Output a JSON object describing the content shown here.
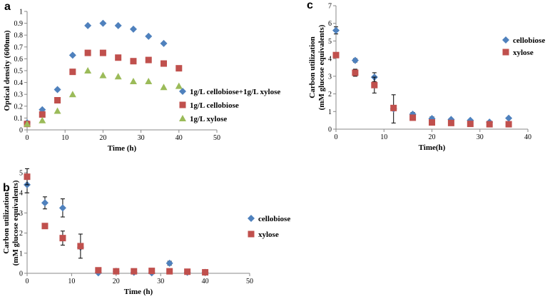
{
  "colors": {
    "blue": "#4f81bd",
    "red": "#c0504d",
    "green": "#9bbb59",
    "axis": "#888888",
    "errorbar": "#000000"
  },
  "chart_data": [
    {
      "id": "a",
      "panel_label": "a",
      "type": "scatter",
      "xlabel": "Time (h)",
      "ylabel": "Optical density (600nm)",
      "xlim": [
        0,
        50
      ],
      "ylim": [
        0,
        1
      ],
      "xticks": [
        "0",
        "10",
        "20",
        "30",
        "40",
        "50"
      ],
      "yticks": [
        "0",
        "0.1",
        "0.2",
        "0.3",
        "0.4",
        "0.5",
        "0.6",
        "0.7",
        "0.8",
        "0.9",
        "1"
      ],
      "series": [
        {
          "name": "1g/L cellobiose+1g/L xylose",
          "color": "blue",
          "marker": "diamond",
          "x": [
            0,
            4,
            8,
            12,
            16,
            20,
            24,
            28,
            32,
            36
          ],
          "y": [
            0.06,
            0.17,
            0.34,
            0.63,
            0.88,
            0.9,
            0.88,
            0.85,
            0.79,
            0.73
          ]
        },
        {
          "name": "1g/L cellobiose",
          "color": "red",
          "marker": "square",
          "x": [
            0,
            4,
            8,
            12,
            16,
            20,
            24,
            28,
            32,
            36,
            40
          ],
          "y": [
            0.05,
            0.13,
            0.25,
            0.49,
            0.65,
            0.65,
            0.61,
            0.58,
            0.59,
            0.56,
            0.52
          ]
        },
        {
          "name": "1g/L xylose",
          "color": "green",
          "marker": "triangle",
          "x": [
            0,
            4,
            8,
            12,
            16,
            20,
            24,
            28,
            32,
            36,
            40
          ],
          "y": [
            0.05,
            0.08,
            0.16,
            0.3,
            0.5,
            0.46,
            0.45,
            0.41,
            0.41,
            0.36,
            0.37
          ]
        }
      ]
    },
    {
      "id": "b",
      "panel_label": "b",
      "type": "scatter",
      "xlabel": "Time (h)",
      "ylabel_lines": [
        "Carbon utilization",
        "(mM glucose equivalents)"
      ],
      "xlim": [
        0,
        50
      ],
      "ylim": [
        0,
        5
      ],
      "xticks": [
        "0",
        "10",
        "20",
        "30",
        "40",
        "50"
      ],
      "yticks": [
        "0",
        "1",
        "2",
        "3",
        "4",
        "5"
      ],
      "series": [
        {
          "name": "cellobiose",
          "color": "blue",
          "marker": "diamond",
          "x": [
            0,
            4,
            8,
            12,
            16,
            20,
            24,
            28,
            32,
            36,
            40
          ],
          "y": [
            4.4,
            3.5,
            3.25,
            1.3,
            0.02,
            0.1,
            0.05,
            0.02,
            0.5,
            0.05,
            0.05
          ],
          "err": [
            0.4,
            0.3,
            0.45,
            0.0,
            0.0,
            0.0,
            0.0,
            0.0,
            0.1,
            0.0,
            0.0
          ]
        },
        {
          "name": "xylose",
          "color": "red",
          "marker": "square",
          "x": [
            0,
            4,
            8,
            12,
            16,
            20,
            24,
            28,
            32,
            36,
            40
          ],
          "y": [
            4.8,
            2.35,
            1.75,
            1.35,
            0.15,
            0.1,
            0.1,
            0.12,
            0.1,
            0.08,
            0.05
          ],
          "err": [
            0.4,
            0.0,
            0.35,
            0.6,
            0.0,
            0.0,
            0.0,
            0.0,
            0.0,
            0.0,
            0.0
          ]
        }
      ]
    },
    {
      "id": "c",
      "panel_label": "c",
      "type": "scatter",
      "xlabel": "Time(h)",
      "ylabel_lines": [
        "Carbon utilization",
        "(mM glucose equivalents)"
      ],
      "xlim": [
        0,
        40
      ],
      "ylim": [
        0,
        7
      ],
      "xticks": [
        "0",
        "10",
        "20",
        "30",
        "40"
      ],
      "yticks": [
        "0",
        "1",
        "2",
        "3",
        "4",
        "5",
        "6",
        "7"
      ],
      "series": [
        {
          "name": "cellobiose",
          "color": "blue",
          "marker": "diamond",
          "x": [
            0,
            4,
            8,
            12,
            16,
            20,
            24,
            28,
            32,
            36
          ],
          "y": [
            5.6,
            3.9,
            2.95,
            1.15,
            0.85,
            0.6,
            0.55,
            0.5,
            0.4,
            0.62
          ],
          "err": [
            0.2,
            0.1,
            0.25,
            0.8,
            0.1,
            0.1,
            0.05,
            0.05,
            0.05,
            0.0
          ]
        },
        {
          "name": "xylose",
          "color": "red",
          "marker": "square",
          "x": [
            0,
            4,
            8,
            12,
            16,
            20,
            24,
            28,
            32,
            36
          ],
          "y": [
            4.2,
            3.2,
            2.5,
            1.2,
            0.65,
            0.38,
            0.35,
            0.3,
            0.28,
            0.28
          ],
          "err": [
            0.0,
            0.2,
            0.45,
            0.0,
            0.1,
            0.0,
            0.0,
            0.0,
            0.0,
            0.0
          ]
        }
      ]
    }
  ]
}
